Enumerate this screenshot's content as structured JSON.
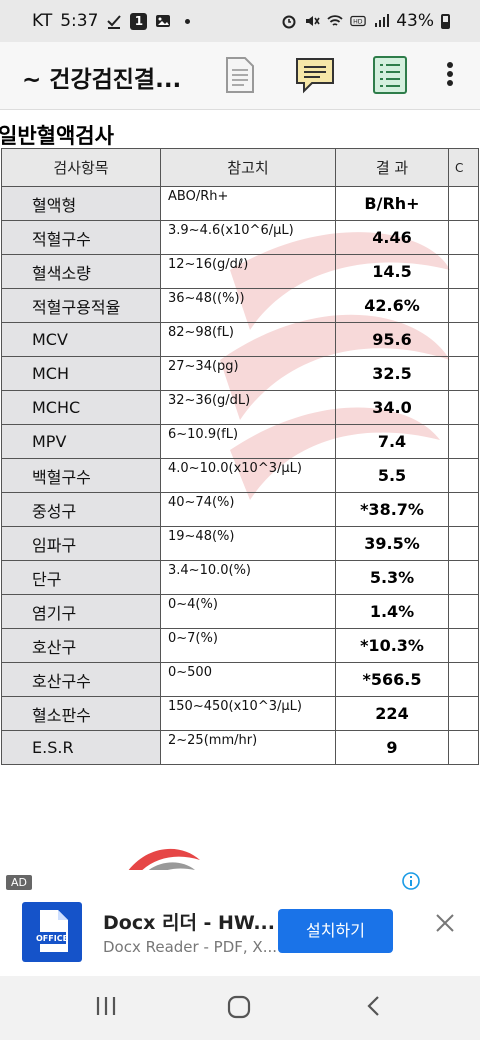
{
  "status_bar": {
    "carrier": "KT",
    "time": "5:37",
    "notif_count": "1",
    "battery": "43%"
  },
  "app_bar": {
    "title": "~ 건강검진결..."
  },
  "document": {
    "section_title": "일반혈액검사",
    "headers": [
      "검사항목",
      "참고치",
      "결 과",
      "C"
    ],
    "rows": [
      {
        "name": "혈액형",
        "ref": "ABO/Rh+",
        "result": "B/Rh+"
      },
      {
        "name": "적혈구수",
        "ref": "3.9~4.6(x10^6/μL)",
        "result": "4.46"
      },
      {
        "name": "혈색소량",
        "ref": "12~16(g/dℓ)",
        "result": "14.5"
      },
      {
        "name": "적혈구용적율",
        "ref": "36~48((%))",
        "result": "42.6%"
      },
      {
        "name": "MCV",
        "ref": "82~98(fL)",
        "result": "95.6"
      },
      {
        "name": "MCH",
        "ref": "27~34(pg)",
        "result": "32.5"
      },
      {
        "name": "MCHC",
        "ref": "32~36(g/dL)",
        "result": "34.0"
      },
      {
        "name": "MPV",
        "ref": "6~10.9(fL)",
        "result": "7.4"
      },
      {
        "name": "백혈구수",
        "ref": "4.0~10.0(x10^3/μL)",
        "result": "5.5"
      },
      {
        "name": "중성구",
        "ref": "40~74(%)",
        "result": "*38.7%"
      },
      {
        "name": "임파구",
        "ref": "19~48(%)",
        "result": "39.5%"
      },
      {
        "name": "단구",
        "ref": "3.4~10.0(%)",
        "result": "5.3%"
      },
      {
        "name": "염기구",
        "ref": "0~4(%)",
        "result": "1.4%"
      },
      {
        "name": "호산구",
        "ref": "0~7(%)",
        "result": "*10.3%"
      },
      {
        "name": "호산구수",
        "ref": "0~500",
        "result": "*566.5"
      },
      {
        "name": "혈소판수",
        "ref": "150~450(x10^3/μL)",
        "result": "224"
      },
      {
        "name": "E.S.R",
        "ref": "2~25(mm/hr)",
        "result": "9"
      }
    ]
  },
  "ad": {
    "badge": "AD",
    "title": "Docx 리더 - HW...",
    "subtitle": "Docx Reader - PDF, X...",
    "button": "설치하기",
    "icon_label": "OFFICE"
  },
  "colors": {
    "accent": "#1a73e8",
    "icon_blue": "#1553c9",
    "watermark": "#f3cccc"
  }
}
